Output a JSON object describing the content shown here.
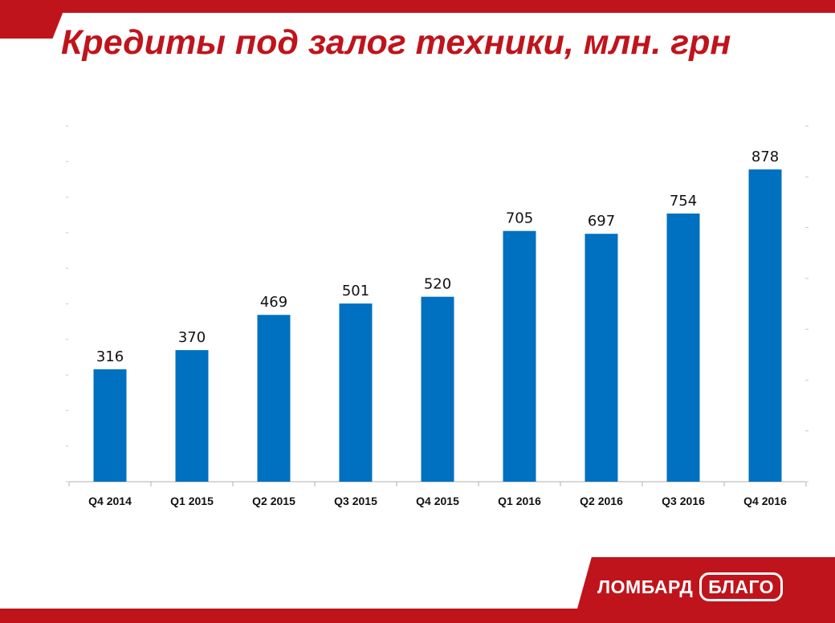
{
  "page": {
    "title": "Кредиты под залог техники, млн. грн"
  },
  "chart_data": {
    "type": "bar",
    "title": "Кредиты под залог техники, млн. грн",
    "categories": [
      "Q4 2014",
      "Q1 2015",
      "Q2 2015",
      "Q3 2015",
      "Q4 2015",
      "Q1 2016",
      "Q2 2016",
      "Q3 2016",
      "Q4 2016"
    ],
    "values": [
      316,
      370,
      469,
      501,
      520,
      705,
      697,
      754,
      878
    ],
    "xlabel": "",
    "ylabel": "",
    "ylim": [
      0,
      1000
    ],
    "grid": false,
    "legend": "none",
    "bar_color": "#0070c0"
  },
  "footer": {
    "logo_word1": "ЛОМБАРД",
    "logo_word2": "БЛАГО",
    "brand_color": "#c0141c"
  }
}
